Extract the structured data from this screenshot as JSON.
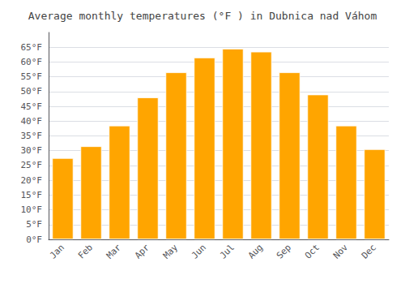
{
  "chart_data": {
    "type": "bar",
    "title": "Average monthly temperatures (°F ) in Dubnica nad Váhom",
    "categories": [
      "Jan",
      "Feb",
      "Mar",
      "Apr",
      "May",
      "Jun",
      "Jul",
      "Aug",
      "Sep",
      "Oct",
      "Nov",
      "Dec"
    ],
    "values": [
      27.5,
      31.5,
      38.5,
      48.0,
      56.5,
      61.5,
      64.5,
      63.5,
      56.5,
      49.0,
      38.5,
      30.5
    ],
    "color": "#FFA500",
    "ylim": [
      0,
      70
    ],
    "yticks": [
      {
        "value": 0,
        "label": "0°F"
      },
      {
        "value": 5,
        "label": "5°F"
      },
      {
        "value": 10,
        "label": "10°F"
      },
      {
        "value": 15,
        "label": "15°F"
      },
      {
        "value": 20,
        "label": "20°F"
      },
      {
        "value": 25,
        "label": "25°F"
      },
      {
        "value": 30,
        "label": "30°F"
      },
      {
        "value": 35,
        "label": "35°F"
      },
      {
        "value": 40,
        "label": "40°F"
      },
      {
        "value": 45,
        "label": "45°F"
      },
      {
        "value": 50,
        "label": "50°F"
      },
      {
        "value": 55,
        "label": "55°F"
      },
      {
        "value": 60,
        "label": "60°F"
      },
      {
        "value": 65,
        "label": "65°F"
      }
    ],
    "grid": true
  }
}
